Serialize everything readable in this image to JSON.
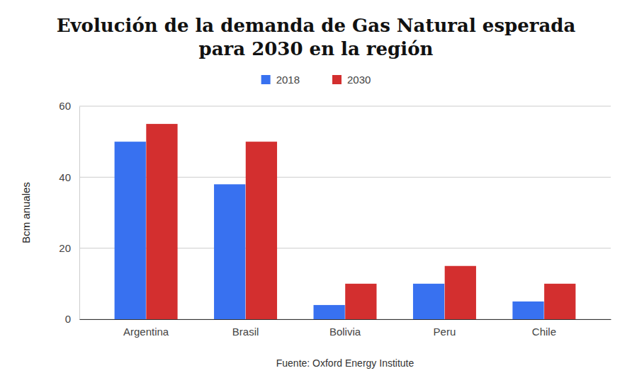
{
  "chart_data": {
    "type": "bar",
    "title": "Evolución de la demanda de Gas Natural esperada\npara 2030 en la región",
    "categories": [
      "Argentina",
      "Brasil",
      "Bolivia",
      "Peru",
      "Chile"
    ],
    "series": [
      {
        "name": "2018",
        "color": "#3871f0",
        "values": [
          50,
          38,
          4,
          10,
          5
        ]
      },
      {
        "name": "2030",
        "color": "#d32f2f",
        "values": [
          55,
          50,
          10,
          15,
          10
        ]
      }
    ],
    "y_label": "Bcm anuales",
    "annotations": [
      "Fuente: Oxford Energy Institute"
    ],
    "ylim": [
      0,
      60
    ],
    "yticks": [
      0,
      20,
      40,
      60
    ],
    "grid": true,
    "legend": "top"
  }
}
